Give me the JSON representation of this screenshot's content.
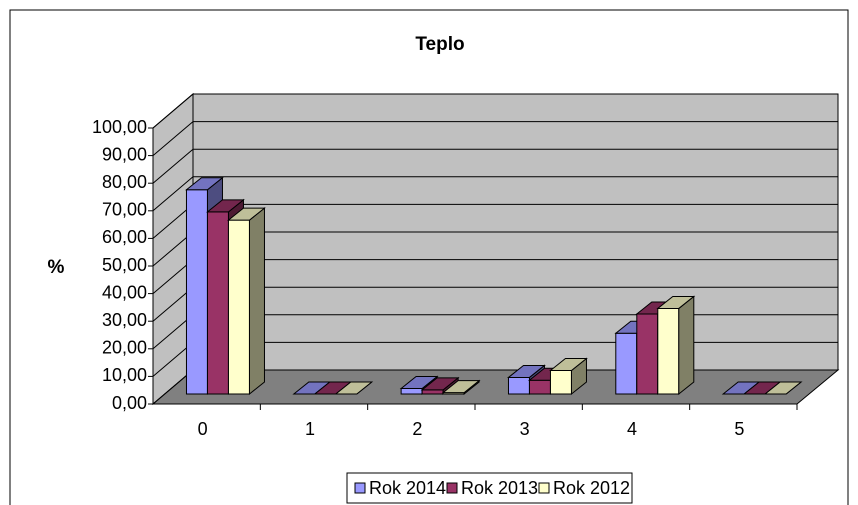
{
  "chart_data": {
    "type": "bar3d",
    "title": "Teplo",
    "y_label": "%",
    "categories": [
      "0",
      "1",
      "2",
      "3",
      "4",
      "5"
    ],
    "series": [
      {
        "name": "Rok 2014",
        "color": "#9999ff",
        "values": [
          74,
          0,
          2,
          6,
          22,
          0
        ]
      },
      {
        "name": "Rok 2013",
        "color": "#993366",
        "values": [
          66,
          0,
          1.5,
          5,
          29,
          0
        ]
      },
      {
        "name": "Rok 2012",
        "color": "#ffffcc",
        "values": [
          63,
          0,
          0.5,
          8.5,
          31,
          0
        ]
      }
    ],
    "ylim": [
      0,
      100
    ],
    "yticks": [
      {
        "value": 0,
        "label": "0,00"
      },
      {
        "value": 10,
        "label": "10,00"
      },
      {
        "value": 20,
        "label": "20,00"
      },
      {
        "value": 30,
        "label": "30,00"
      },
      {
        "value": 40,
        "label": "40,00"
      },
      {
        "value": 50,
        "label": "50,00"
      },
      {
        "value": 60,
        "label": "60,00"
      },
      {
        "value": 70,
        "label": "70,00"
      },
      {
        "value": 80,
        "label": "80,00"
      },
      {
        "value": 90,
        "label": "90,00"
      },
      {
        "value": 100,
        "label": "100,00"
      }
    ],
    "grid": true,
    "legend": "bottom"
  }
}
